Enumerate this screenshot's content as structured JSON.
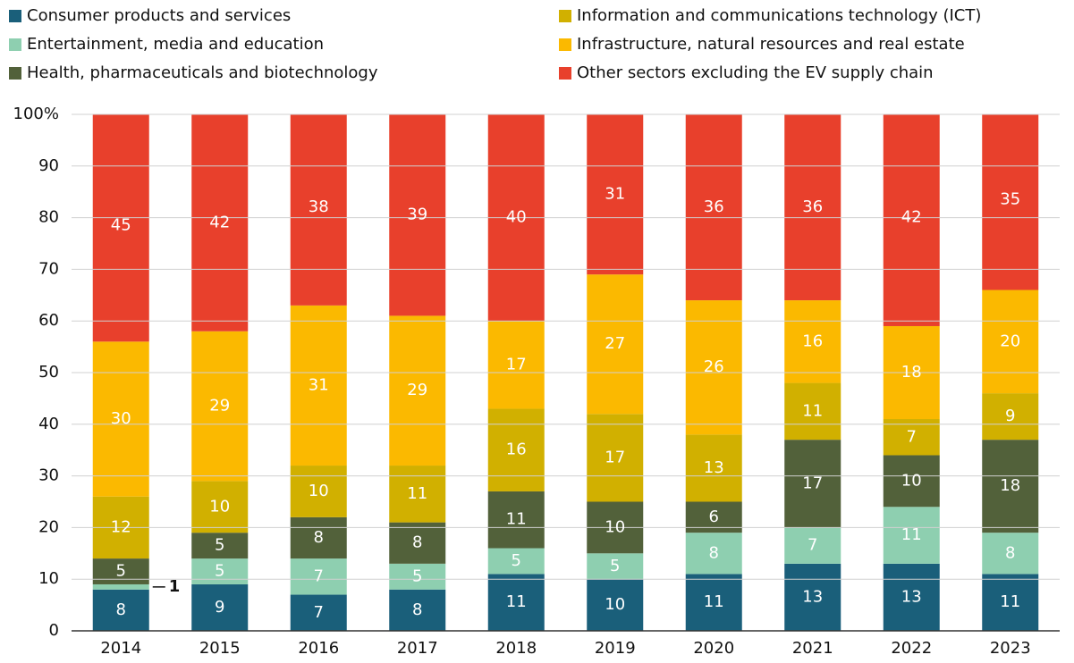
{
  "chart_data": {
    "type": "stacked_bar",
    "categories": [
      "2014",
      "2015",
      "2016",
      "2017",
      "2018",
      "2019",
      "2020",
      "2021",
      "2022",
      "2023"
    ],
    "series": [
      {
        "name": "Consumer products and services",
        "color": "#1a5f7a",
        "values": [
          8,
          9,
          7,
          8,
          11,
          10,
          11,
          13,
          13,
          11
        ]
      },
      {
        "name": "Entertainment, media and education",
        "color": "#8ecfb0",
        "values": [
          1,
          5,
          7,
          5,
          5,
          5,
          8,
          7,
          11,
          8
        ]
      },
      {
        "name": "Health, pharmaceuticals and biotechnology",
        "color": "#52613a",
        "values": [
          5,
          5,
          8,
          8,
          11,
          10,
          6,
          17,
          10,
          18
        ]
      },
      {
        "name": "Information and communications technology (ICT)",
        "color": "#d1b000",
        "values": [
          12,
          10,
          10,
          11,
          16,
          17,
          13,
          11,
          7,
          9
        ]
      },
      {
        "name": "Infrastructure, natural resources and real estate",
        "color": "#fbb900",
        "values": [
          30,
          29,
          31,
          29,
          17,
          27,
          26,
          16,
          18,
          20
        ]
      },
      {
        "name": "Other sectors excluding the EV supply chain",
        "color": "#e8402c",
        "values": [
          45,
          42,
          38,
          39,
          40,
          31,
          36,
          36,
          42,
          35
        ]
      }
    ],
    "ylim": [
      0,
      100
    ],
    "yticks": [
      0,
      10,
      20,
      30,
      40,
      50,
      60,
      70,
      80,
      90,
      {
        "value": 100,
        "label": "100%"
      }
    ],
    "grid": true
  }
}
